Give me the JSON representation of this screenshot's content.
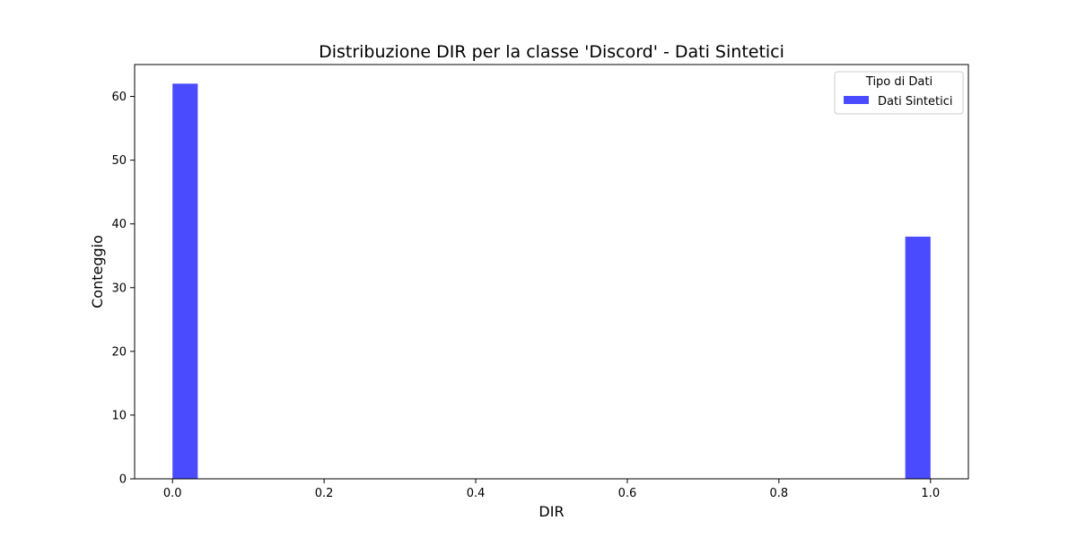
{
  "chart_data": {
    "type": "bar",
    "title": "Distribuzione DIR per la classe 'Discord' - Dati Sintetici",
    "xlabel": "DIR",
    "ylabel": "Conteggio",
    "xlim": [
      -0.05,
      1.05
    ],
    "ylim": [
      0,
      65
    ],
    "x_ticks": [
      0.0,
      0.2,
      0.4,
      0.6,
      0.8,
      1.0
    ],
    "x_tick_labels": [
      "0.0",
      "0.2",
      "0.4",
      "0.6",
      "0.8",
      "1.0"
    ],
    "y_ticks": [
      0,
      10,
      20,
      30,
      40,
      50,
      60
    ],
    "y_tick_labels": [
      "0",
      "10",
      "20",
      "30",
      "40",
      "50",
      "60"
    ],
    "grid": false,
    "bin_width": 0.0333,
    "series": [
      {
        "name": "Dati Sintetici",
        "color": "#4a4aff",
        "bins": [
          {
            "x_start": 0.0,
            "x_end": 0.0333,
            "value": 62
          },
          {
            "x_start": 0.9667,
            "x_end": 1.0,
            "value": 38
          }
        ]
      }
    ],
    "legend": {
      "title": "Tipo di Dati",
      "placement": "top-right",
      "entries": [
        "Dati Sintetici"
      ]
    }
  }
}
